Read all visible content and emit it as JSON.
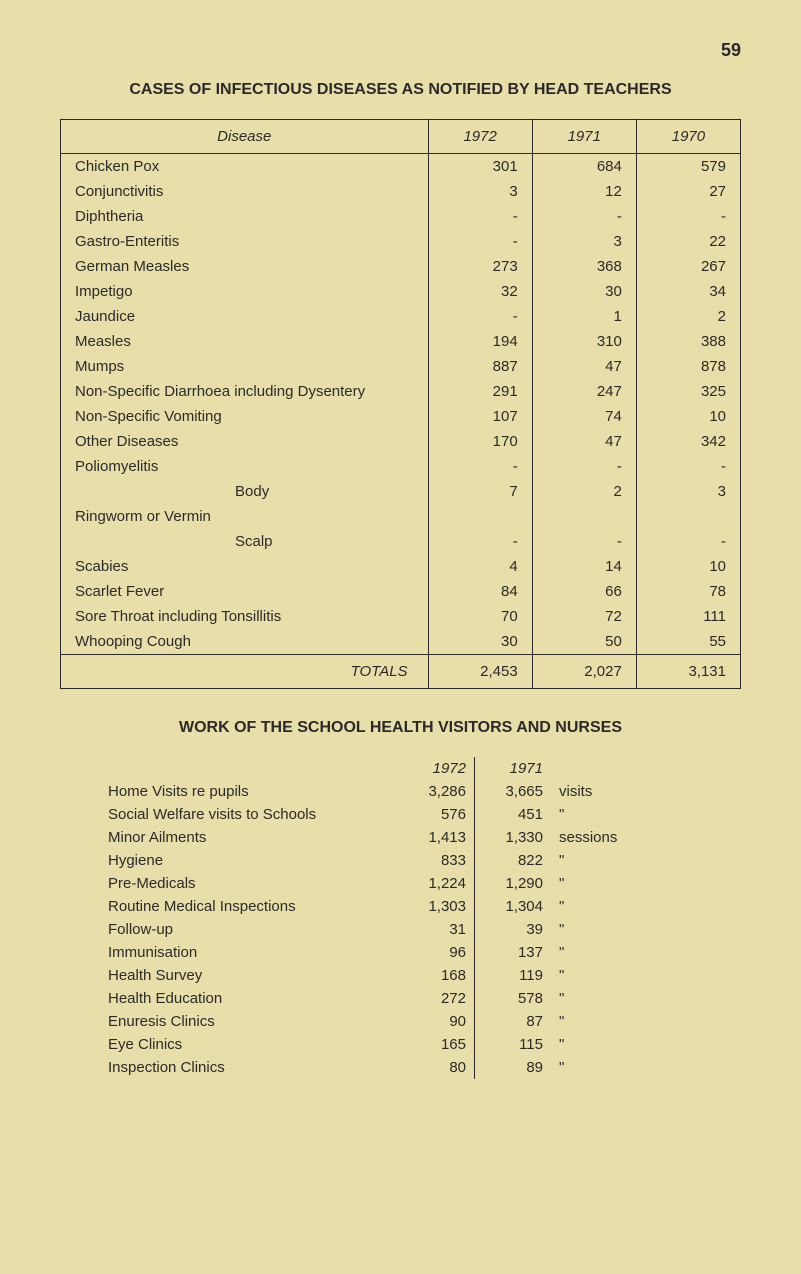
{
  "page_number": "59",
  "title": "CASES OF INFECTIOUS DISEASES AS NOTIFIED BY HEAD TEACHERS",
  "table1": {
    "headers": [
      "Disease",
      "1972",
      "1971",
      "1970"
    ],
    "rows": [
      {
        "label": "Chicken Pox",
        "y1972": "301",
        "y1971": "684",
        "y1970": "579"
      },
      {
        "label": "Conjunctivitis",
        "y1972": "3",
        "y1971": "12",
        "y1970": "27"
      },
      {
        "label": "Diphtheria",
        "y1972": "-",
        "y1971": "-",
        "y1970": "-"
      },
      {
        "label": "Gastro-Enteritis",
        "y1972": "-",
        "y1971": "3",
        "y1970": "22"
      },
      {
        "label": "German Measles",
        "y1972": "273",
        "y1971": "368",
        "y1970": "267"
      },
      {
        "label": "Impetigo",
        "y1972": "32",
        "y1971": "30",
        "y1970": "34"
      },
      {
        "label": "Jaundice",
        "y1972": "-",
        "y1971": "1",
        "y1970": "2"
      },
      {
        "label": "Measles",
        "y1972": "194",
        "y1971": "310",
        "y1970": "388"
      },
      {
        "label": "Mumps",
        "y1972": "887",
        "y1971": "47",
        "y1970": "878"
      },
      {
        "label": "Non-Specific Diarrhoea including Dysentery",
        "y1972": "291",
        "y1971": "247",
        "y1970": "325"
      },
      {
        "label": "Non-Specific Vomiting",
        "y1972": "107",
        "y1971": "74",
        "y1970": "10"
      },
      {
        "label": "Other Diseases",
        "y1972": "170",
        "y1971": "47",
        "y1970": "342"
      },
      {
        "label": "Poliomyelitis",
        "y1972": "-",
        "y1971": "-",
        "y1970": "-"
      }
    ],
    "ringworm_group": {
      "label": "Ringworm or Vermin",
      "body": {
        "label": "Body",
        "y1972": "7",
        "y1971": "2",
        "y1970": "3"
      },
      "scalp": {
        "label": "Scalp",
        "y1972": "-",
        "y1971": "-",
        "y1970": "-"
      }
    },
    "rows2": [
      {
        "label": "Scabies",
        "y1972": "4",
        "y1971": "14",
        "y1970": "10"
      },
      {
        "label": "Scarlet Fever",
        "y1972": "84",
        "y1971": "66",
        "y1970": "78"
      },
      {
        "label": "Sore Throat including Tonsillitis",
        "y1972": "70",
        "y1971": "72",
        "y1970": "111"
      },
      {
        "label": "Whooping Cough",
        "y1972": "30",
        "y1971": "50",
        "y1970": "55"
      }
    ],
    "totals": {
      "label": "TOTALS",
      "y1972": "2,453",
      "y1971": "2,027",
      "y1970": "3,131"
    }
  },
  "subtitle": "WORK OF THE SCHOOL HEALTH VISITORS AND NURSES",
  "table2": {
    "headers": [
      "1972",
      "1971"
    ],
    "rows": [
      {
        "label": "Home Visits re pupils",
        "y1972": "3,286",
        "y1971": "3,665",
        "unit": "visits"
      },
      {
        "label": "Social Welfare visits to Schools",
        "y1972": "576",
        "y1971": "451",
        "unit": "\""
      },
      {
        "label": "Minor Ailments",
        "y1972": "1,413",
        "y1971": "1,330",
        "unit": "sessions"
      },
      {
        "label": "Hygiene",
        "y1972": "833",
        "y1971": "822",
        "unit": "\""
      },
      {
        "label": "Pre-Medicals",
        "y1972": "1,224",
        "y1971": "1,290",
        "unit": "\""
      },
      {
        "label": "Routine Medical Inspections",
        "y1972": "1,303",
        "y1971": "1,304",
        "unit": "\""
      },
      {
        "label": "Follow-up",
        "y1972": "31",
        "y1971": "39",
        "unit": "\""
      },
      {
        "label": "Immunisation",
        "y1972": "96",
        "y1971": "137",
        "unit": "\""
      },
      {
        "label": "Health Survey",
        "y1972": "168",
        "y1971": "119",
        "unit": "\""
      },
      {
        "label": "Health Education",
        "y1972": "272",
        "y1971": "578",
        "unit": "\""
      },
      {
        "label": "Enuresis Clinics",
        "y1972": "90",
        "y1971": "87",
        "unit": "\""
      },
      {
        "label": "Eye Clinics",
        "y1972": "165",
        "y1971": "115",
        "unit": "\""
      },
      {
        "label": "Inspection Clinics",
        "y1972": "80",
        "y1971": "89",
        "unit": "\""
      }
    ]
  }
}
